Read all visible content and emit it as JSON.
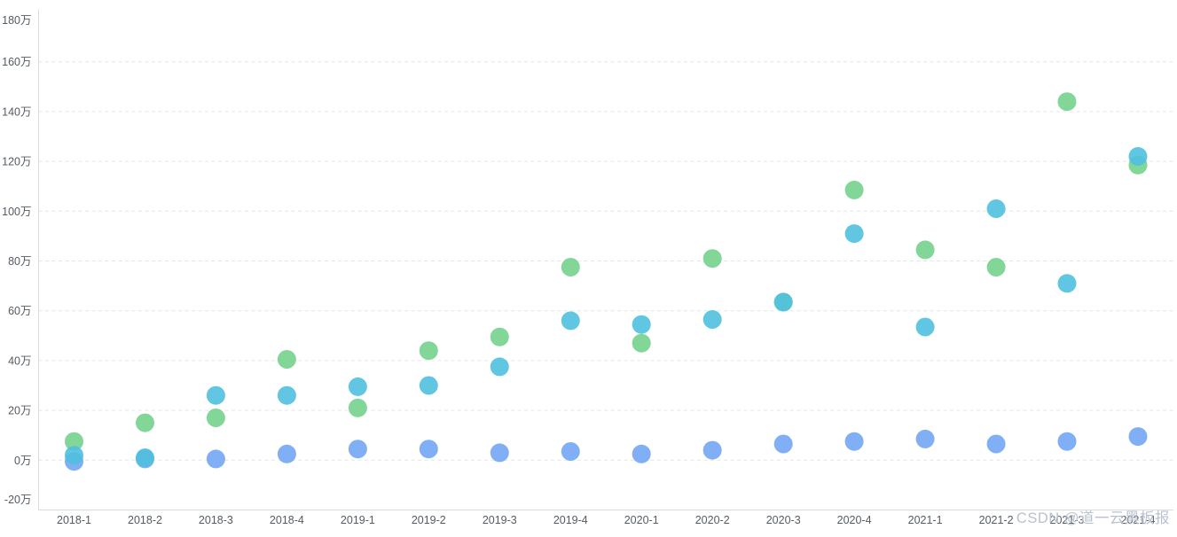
{
  "watermark": "CSDN @道一云黑板报",
  "axis_colors": {
    "label_color": "#545b63",
    "grid_color": "#e3e6eb",
    "axis_line_color": "#d8dbe0"
  },
  "chart_data": {
    "type": "scatter",
    "title": "",
    "xlabel": "",
    "ylabel": "",
    "unit": "万",
    "categories": [
      "2018-1",
      "2018-2",
      "2018-3",
      "2018-4",
      "2019-1",
      "2019-2",
      "2019-3",
      "2019-4",
      "2020-1",
      "2020-2",
      "2020-3",
      "2020-4",
      "2021-1",
      "2021-2",
      "2021-3",
      "2021-4"
    ],
    "y_tick_labels": [
      "180万",
      "160万",
      "140万",
      "120万",
      "100万",
      "80万",
      "60万",
      "40万",
      "20万",
      "0万",
      "-20万"
    ],
    "ylim": [
      -20,
      180
    ],
    "y_step": 20,
    "grid": "horizontal-dashed",
    "legend": "none",
    "symbol": "circle",
    "symbol_radius": 10.5,
    "series": [
      {
        "name": "green-series",
        "color": "#74d18c",
        "values": [
          7.5,
          15,
          17,
          40.5,
          21,
          44,
          49.5,
          77.5,
          47,
          81,
          63.5,
          108.5,
          84.5,
          77.5,
          144,
          118.5
        ]
      },
      {
        "name": "blue-series",
        "color": "#73a6f4",
        "values": [
          -0.5,
          0.5,
          0.5,
          2.5,
          4.5,
          4.5,
          3,
          3.5,
          2.5,
          4,
          6.5,
          7.5,
          8.5,
          6.5,
          7.5,
          9.5
        ]
      },
      {
        "name": "cyan-series",
        "color": "#4fc0df",
        "values": [
          2,
          1,
          26,
          26,
          29.5,
          30,
          37.5,
          56,
          54.5,
          56.5,
          63.5,
          91,
          53.5,
          101,
          71,
          122
        ]
      }
    ]
  }
}
